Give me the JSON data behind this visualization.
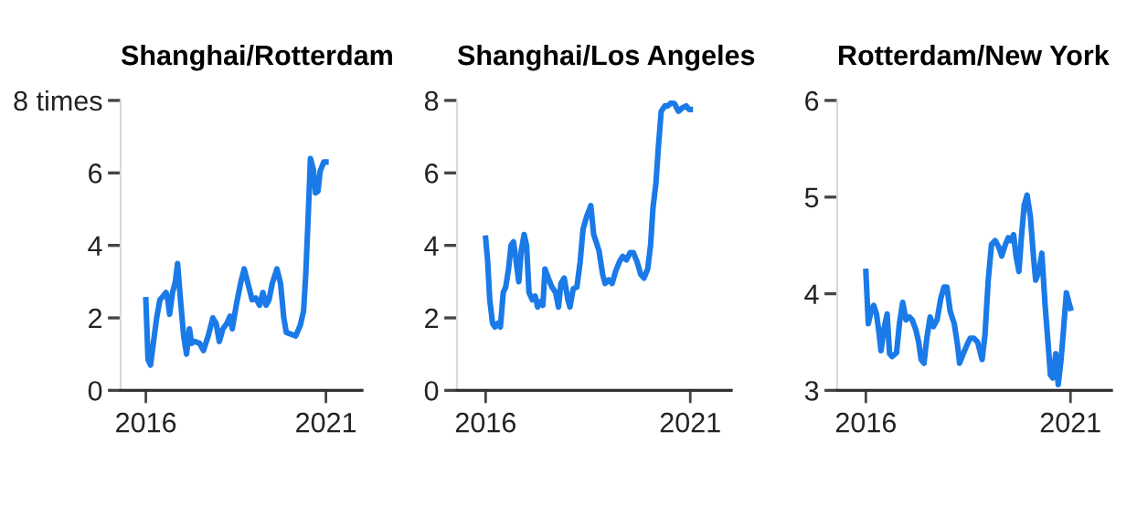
{
  "chart_data": [
    {
      "type": "line",
      "title": "Shanghai/Rotterdam",
      "xlim": [
        2015.3,
        2022.0
      ],
      "xticks": [
        2016,
        2021
      ],
      "ylim": [
        0,
        8
      ],
      "yticks": [
        0,
        2,
        4,
        6,
        {
          "value": 8,
          "label": "8 times"
        }
      ],
      "x": [
        2016.0,
        2016.06,
        2016.13,
        2016.22,
        2016.3,
        2016.39,
        2016.48,
        2016.56,
        2016.61,
        2016.66,
        2016.74,
        2016.82,
        2016.88,
        2016.97,
        2017.05,
        2017.13,
        2017.21,
        2017.27,
        2017.36,
        2017.49,
        2017.6,
        2017.73,
        2017.86,
        2017.95,
        2018.04,
        2018.14,
        2018.25,
        2018.34,
        2018.4,
        2018.51,
        2018.64,
        2018.73,
        2018.86,
        2018.95,
        2019.05,
        2019.16,
        2019.25,
        2019.34,
        2019.42,
        2019.51,
        2019.64,
        2019.74,
        2019.83,
        2019.9,
        2020.03,
        2020.16,
        2020.29,
        2020.38,
        2020.44,
        2020.51,
        2020.57,
        2020.65,
        2020.71,
        2020.78,
        2020.84,
        2020.94,
        2021.0
      ],
      "series": [
        {
          "color": "#1a7ae8",
          "values": [
            2.5,
            0.85,
            0.7,
            1.4,
            2.0,
            2.5,
            2.6,
            2.7,
            2.5,
            2.1,
            2.7,
            3.0,
            3.5,
            2.4,
            1.5,
            1.0,
            1.7,
            1.3,
            1.35,
            1.3,
            1.1,
            1.5,
            2.0,
            1.85,
            1.35,
            1.7,
            1.85,
            2.05,
            1.7,
            2.35,
            3.0,
            3.35,
            2.85,
            2.5,
            2.55,
            2.35,
            2.7,
            2.35,
            2.5,
            2.95,
            3.35,
            2.95,
            2.0,
            1.6,
            1.55,
            1.5,
            1.8,
            2.2,
            3.2,
            4.85,
            6.4,
            6.1,
            5.45,
            5.5,
            6.05,
            6.3,
            6.3
          ]
        }
      ]
    },
    {
      "type": "line",
      "title": "Shanghai/Los Angeles",
      "xlim": [
        2015.3,
        2022.0
      ],
      "xticks": [
        2016,
        2021
      ],
      "ylim": [
        0,
        8
      ],
      "yticks": [
        0,
        2,
        4,
        6,
        8
      ],
      "x": [
        2016.0,
        2016.05,
        2016.1,
        2016.17,
        2016.23,
        2016.3,
        2016.36,
        2016.43,
        2016.49,
        2016.56,
        2016.62,
        2016.68,
        2016.73,
        2016.81,
        2016.87,
        2016.94,
        2017.0,
        2017.06,
        2017.14,
        2017.21,
        2017.27,
        2017.34,
        2017.4,
        2017.45,
        2017.53,
        2017.62,
        2017.71,
        2017.78,
        2017.84,
        2017.92,
        2018.01,
        2018.06,
        2018.14,
        2018.23,
        2018.31,
        2018.38,
        2018.47,
        2018.57,
        2018.64,
        2018.7,
        2018.77,
        2018.86,
        2018.92,
        2019.01,
        2019.09,
        2019.18,
        2019.27,
        2019.35,
        2019.44,
        2019.53,
        2019.61,
        2019.7,
        2019.79,
        2019.87,
        2019.96,
        2020.03,
        2020.09,
        2020.16,
        2020.22,
        2020.29,
        2020.38,
        2020.45,
        2020.55,
        2020.62,
        2020.71,
        2020.81,
        2020.9,
        2020.97,
        2021.0
      ],
      "series": [
        {
          "color": "#1a7ae8",
          "values": [
            4.2,
            3.55,
            2.5,
            1.85,
            1.75,
            1.85,
            1.75,
            2.7,
            2.85,
            3.35,
            4.0,
            4.1,
            3.7,
            3.0,
            3.85,
            4.3,
            4.0,
            2.7,
            2.5,
            2.6,
            2.3,
            2.45,
            2.35,
            3.35,
            3.1,
            2.85,
            2.7,
            2.3,
            2.95,
            3.1,
            2.5,
            2.3,
            2.8,
            2.85,
            3.55,
            4.45,
            4.8,
            5.1,
            4.3,
            4.1,
            3.85,
            3.2,
            2.95,
            3.05,
            2.95,
            3.3,
            3.55,
            3.7,
            3.6,
            3.8,
            3.8,
            3.55,
            3.2,
            3.1,
            3.35,
            4.0,
            5.05,
            5.7,
            6.7,
            7.7,
            7.85,
            7.85,
            7.95,
            7.9,
            7.7,
            7.8,
            7.85,
            7.75,
            7.75
          ]
        }
      ]
    },
    {
      "type": "line",
      "title": "Rotterdam/New York",
      "xlim": [
        2015.3,
        2022.0
      ],
      "xticks": [
        2016,
        2021
      ],
      "ylim": [
        3,
        6
      ],
      "yticks": [
        3,
        4,
        5,
        6
      ],
      "x": [
        2016.0,
        2016.06,
        2016.13,
        2016.19,
        2016.26,
        2016.32,
        2016.37,
        2016.44,
        2016.52,
        2016.58,
        2016.64,
        2016.75,
        2016.82,
        2016.9,
        2016.98,
        2017.06,
        2017.13,
        2017.22,
        2017.29,
        2017.35,
        2017.42,
        2017.49,
        2017.57,
        2017.65,
        2017.74,
        2017.83,
        2017.91,
        2017.98,
        2018.06,
        2018.16,
        2018.24,
        2018.29,
        2018.38,
        2018.47,
        2018.55,
        2018.64,
        2018.73,
        2018.84,
        2018.91,
        2018.99,
        2019.07,
        2019.16,
        2019.25,
        2019.32,
        2019.41,
        2019.48,
        2019.54,
        2019.61,
        2019.67,
        2019.74,
        2019.8,
        2019.87,
        2019.94,
        2020.02,
        2020.1,
        2020.15,
        2020.23,
        2020.3,
        2020.38,
        2020.45,
        2020.51,
        2020.57,
        2020.64,
        2020.7,
        2020.77,
        2020.83,
        2020.9,
        2020.96,
        2021.0
      ],
      "series": [
        {
          "color": "#1a7ae8",
          "values": [
            4.23,
            3.69,
            3.82,
            3.88,
            3.79,
            3.6,
            3.41,
            3.63,
            3.79,
            3.38,
            3.35,
            3.39,
            3.69,
            3.91,
            3.73,
            3.76,
            3.73,
            3.63,
            3.5,
            3.32,
            3.28,
            3.54,
            3.76,
            3.66,
            3.73,
            3.95,
            4.07,
            4.07,
            3.82,
            3.69,
            3.47,
            3.28,
            3.38,
            3.47,
            3.54,
            3.54,
            3.5,
            3.32,
            3.57,
            4.14,
            4.51,
            4.55,
            4.48,
            4.39,
            4.51,
            4.58,
            4.55,
            4.61,
            4.39,
            4.23,
            4.58,
            4.92,
            5.02,
            4.8,
            4.36,
            4.14,
            4.23,
            4.42,
            3.88,
            3.5,
            3.16,
            3.13,
            3.38,
            3.06,
            3.32,
            3.63,
            4.01,
            3.91,
            3.85
          ]
        }
      ]
    }
  ]
}
